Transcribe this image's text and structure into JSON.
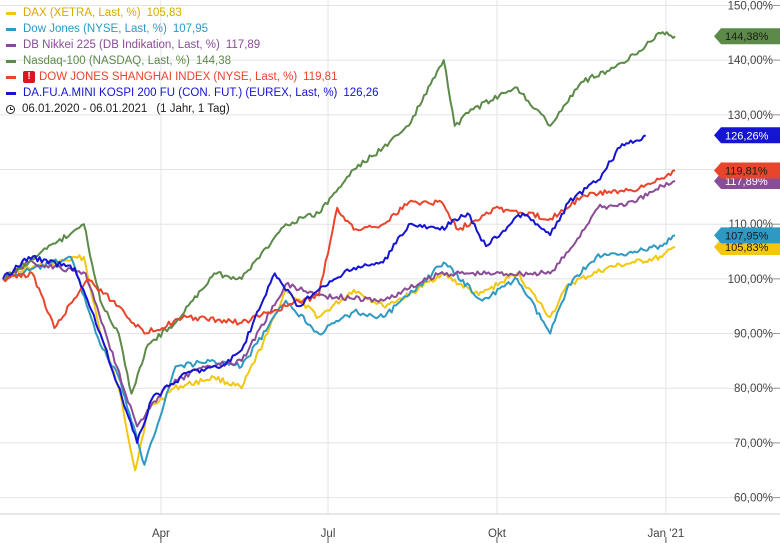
{
  "chart_data": {
    "type": "line",
    "x_range": [
      "2020-01-06",
      "2021-01-31"
    ],
    "ylim": [
      57,
      151
    ],
    "y_ticks": [
      60,
      70,
      80,
      90,
      100,
      110,
      120,
      130,
      140,
      150
    ],
    "y_tick_labels": [
      "60,00%",
      "70,00%",
      "80,00%",
      "90,00%",
      "100,00%",
      "110,00%",
      "120,00%",
      "130,00%",
      "140,00%",
      "150,00%"
    ],
    "x_ticks": [
      {
        "date": "2020-04-01",
        "label": "Apr"
      },
      {
        "date": "2020-07-01",
        "label": "Jul"
      },
      {
        "date": "2020-10-01",
        "label": "Okt"
      },
      {
        "date": "2021-01-01",
        "label": "Jan '21"
      }
    ],
    "grid": true,
    "legend_position": "top-left",
    "period_label": "06.01.2020 - 06.01.2021",
    "period_note": "(1 Jahr, 1 Tag)",
    "series": [
      {
        "name": "DAX (XETRA, Last, %)",
        "last_value": "105,83",
        "badge": "105,83%",
        "color": "#f2c80f",
        "text_color": "#d8a900",
        "badge_text": "#1a1a1a",
        "points": [
          [
            "2020-01-06",
            100
          ],
          [
            "2020-01-20",
            102
          ],
          [
            "2020-02-19",
            104
          ],
          [
            "2020-02-28",
            90
          ],
          [
            "2020-03-09",
            80
          ],
          [
            "2020-03-18",
            65
          ],
          [
            "2020-03-25",
            76
          ],
          [
            "2020-04-08",
            80
          ],
          [
            "2020-04-30",
            82
          ],
          [
            "2020-05-15",
            80
          ],
          [
            "2020-05-29",
            90
          ],
          [
            "2020-06-08",
            98
          ],
          [
            "2020-06-26",
            93
          ],
          [
            "2020-07-15",
            98
          ],
          [
            "2020-07-31",
            95
          ],
          [
            "2020-08-14",
            97
          ],
          [
            "2020-09-01",
            101
          ],
          [
            "2020-09-21",
            97
          ],
          [
            "2020-10-12",
            101
          ],
          [
            "2020-10-30",
            93
          ],
          [
            "2020-11-09",
            99
          ],
          [
            "2020-11-30",
            102
          ],
          [
            "2020-12-15",
            103
          ],
          [
            "2020-12-30",
            104
          ],
          [
            "2021-01-06",
            105.83
          ]
        ]
      },
      {
        "name": "Dow Jones (NYSE, Last, %)",
        "last_value": "107,95",
        "badge": "107,95%",
        "color": "#2e9ac4",
        "text_color": "#2e9ac4",
        "badge_text": "#1a1a1a",
        "points": [
          [
            "2020-01-06",
            100
          ],
          [
            "2020-02-12",
            104
          ],
          [
            "2020-02-28",
            88
          ],
          [
            "2020-03-09",
            82
          ],
          [
            "2020-03-23",
            66
          ],
          [
            "2020-04-09",
            84
          ],
          [
            "2020-04-30",
            85
          ],
          [
            "2020-05-15",
            84
          ],
          [
            "2020-06-08",
            96
          ],
          [
            "2020-06-26",
            90
          ],
          [
            "2020-07-15",
            94
          ],
          [
            "2020-07-31",
            93
          ],
          [
            "2020-08-14",
            97
          ],
          [
            "2020-09-02",
            103
          ],
          [
            "2020-09-23",
            96
          ],
          [
            "2020-10-12",
            100
          ],
          [
            "2020-10-30",
            90
          ],
          [
            "2020-11-09",
            99
          ],
          [
            "2020-11-24",
            104
          ],
          [
            "2020-12-15",
            105
          ],
          [
            "2020-12-30",
            106
          ],
          [
            "2021-01-06",
            107.95
          ]
        ]
      },
      {
        "name": "DB Nikkei 225 (DB Indikation, Last, %)",
        "last_value": "117,89",
        "badge": "117,89%",
        "color": "#8a4c96",
        "text_color": "#8a4c96",
        "badge_text": "#ffffff",
        "points": [
          [
            "2020-01-06",
            100
          ],
          [
            "2020-01-20",
            103
          ],
          [
            "2020-02-20",
            101
          ],
          [
            "2020-03-02",
            90
          ],
          [
            "2020-03-19",
            73
          ],
          [
            "2020-04-03",
            80
          ],
          [
            "2020-04-24",
            84
          ],
          [
            "2020-05-15",
            85
          ],
          [
            "2020-06-08",
            99
          ],
          [
            "2020-06-26",
            97
          ],
          [
            "2020-07-31",
            96
          ],
          [
            "2020-08-31",
            101
          ],
          [
            "2020-09-30",
            101
          ],
          [
            "2020-10-30",
            101
          ],
          [
            "2020-11-09",
            105
          ],
          [
            "2020-11-25",
            113
          ],
          [
            "2020-12-15",
            114
          ],
          [
            "2020-12-30",
            117
          ],
          [
            "2021-01-06",
            117.89
          ]
        ]
      },
      {
        "name": "Nasdaq-100 (NASDAQ, Last, %)",
        "last_value": "144,38",
        "badge": "144,38%",
        "color": "#5c8a48",
        "text_color": "#5c8a48",
        "badge_text": "#1a1a1a",
        "points": [
          [
            "2020-01-06",
            100
          ],
          [
            "2020-02-19",
            110
          ],
          [
            "2020-02-28",
            96
          ],
          [
            "2020-03-09",
            90
          ],
          [
            "2020-03-16",
            79
          ],
          [
            "2020-03-25",
            88
          ],
          [
            "2020-04-09",
            92
          ],
          [
            "2020-04-30",
            101
          ],
          [
            "2020-05-15",
            100
          ],
          [
            "2020-06-08",
            110
          ],
          [
            "2020-06-26",
            112
          ],
          [
            "2020-07-15",
            120
          ],
          [
            "2020-07-31",
            124
          ],
          [
            "2020-08-14",
            128
          ],
          [
            "2020-09-02",
            140
          ],
          [
            "2020-09-08",
            128
          ],
          [
            "2020-09-18",
            131
          ],
          [
            "2020-10-12",
            135
          ],
          [
            "2020-10-30",
            128
          ],
          [
            "2020-11-16",
            136
          ],
          [
            "2020-11-30",
            138
          ],
          [
            "2020-12-15",
            141
          ],
          [
            "2020-12-28",
            145
          ],
          [
            "2021-01-06",
            144.38
          ]
        ]
      },
      {
        "name": "DOW JONES SHANGHAI INDEX (NYSE, Last, %)",
        "last_value": "119,81",
        "badge": "119,81%",
        "color": "#e8452c",
        "text_color": "#e8452c",
        "badge_text": "#1a1a1a",
        "warning": true,
        "points": [
          [
            "2020-01-06",
            100
          ],
          [
            "2020-01-22",
            101
          ],
          [
            "2020-02-03",
            91
          ],
          [
            "2020-02-21",
            100
          ],
          [
            "2020-03-09",
            95
          ],
          [
            "2020-03-23",
            90
          ],
          [
            "2020-04-15",
            93
          ],
          [
            "2020-05-15",
            92
          ],
          [
            "2020-06-08",
            95
          ],
          [
            "2020-06-26",
            97
          ],
          [
            "2020-07-06",
            113
          ],
          [
            "2020-07-15",
            109
          ],
          [
            "2020-07-31",
            110
          ],
          [
            "2020-08-14",
            114
          ],
          [
            "2020-09-01",
            114
          ],
          [
            "2020-09-10",
            109
          ],
          [
            "2020-09-30",
            113
          ],
          [
            "2020-10-15",
            112
          ],
          [
            "2020-10-30",
            111
          ],
          [
            "2020-11-16",
            115
          ],
          [
            "2020-12-01",
            116
          ],
          [
            "2020-12-15",
            116
          ],
          [
            "2021-01-06",
            119.81
          ]
        ]
      },
      {
        "name": "DA.FU.A.MINI KOSPI 200 FU (CON. FUT.) (EUREX, Last, %)",
        "last_value": "126,26",
        "badge": "126,26%",
        "color": "#1414d2",
        "text_color": "#1414d2",
        "badge_text": "#ffffff",
        "points": [
          [
            "2020-01-06",
            100
          ],
          [
            "2020-01-20",
            104
          ],
          [
            "2020-02-14",
            102
          ],
          [
            "2020-02-28",
            90
          ],
          [
            "2020-03-19",
            70
          ],
          [
            "2020-03-27",
            78
          ],
          [
            "2020-04-16",
            83
          ],
          [
            "2020-05-04",
            84
          ],
          [
            "2020-05-15",
            87
          ],
          [
            "2020-06-02",
            101
          ],
          [
            "2020-06-15",
            95
          ],
          [
            "2020-06-26",
            98
          ],
          [
            "2020-07-15",
            102
          ],
          [
            "2020-07-31",
            103
          ],
          [
            "2020-08-14",
            110
          ],
          [
            "2020-08-31",
            109
          ],
          [
            "2020-09-15",
            112
          ],
          [
            "2020-09-25",
            106
          ],
          [
            "2020-10-15",
            112
          ],
          [
            "2020-10-30",
            108
          ],
          [
            "2020-11-09",
            114
          ],
          [
            "2020-11-25",
            118
          ],
          [
            "2020-12-07",
            124
          ],
          [
            "2020-12-21",
            126.26
          ]
        ]
      }
    ]
  }
}
